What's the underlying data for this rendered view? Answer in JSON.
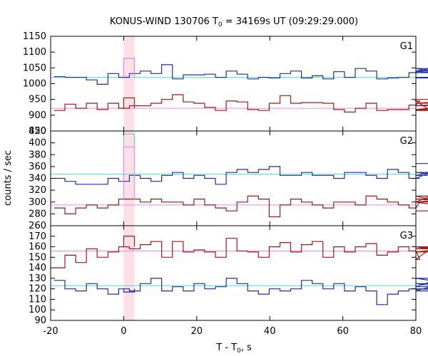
{
  "title": {
    "prefix": "KONUS-WIND 130706 T",
    "sub": "0",
    "suffix": " = 34169s UT (09:29:29.000)"
  },
  "xlabel": {
    "prefix": "T - T",
    "sub": "0",
    "suffix": ", s"
  },
  "ylabel": "counts / sec",
  "chart_data": {
    "type": "line",
    "xlim": [
      -20,
      80
    ],
    "xticks": [
      -20,
      0,
      20,
      40,
      60,
      80
    ],
    "highlight_interval": [
      0,
      2.944
    ],
    "highlight_color": "#fde0e6",
    "bin_step": 2.944,
    "bin_start": -19.04,
    "panels": [
      {
        "name": "G1",
        "ylim": [
          850,
          1150
        ],
        "yticks": [
          850,
          900,
          950,
          1000,
          1050,
          1100,
          1150
        ],
        "background": [
          {
            "color": "#5ecfe0",
            "level": 1020
          },
          {
            "color": "#ee8aee",
            "level": 922
          }
        ],
        "series": [
          {
            "color": "#1c2ea8",
            "values": [
              1022,
              1020,
              1020,
              1012,
              998,
              1032,
              1020,
              1032,
              1040,
              1032,
              1060,
              1015,
              1028,
              1028,
              1030,
              1020,
              1040,
              1030,
              1015,
              1020,
              1018,
              1032,
              1040,
              1018,
              1025,
              1015,
              1038,
              1020,
              1048,
              1040,
              1015,
              1018,
              1020,
              1035,
              1040,
              1048,
              1035,
              1040,
              1020,
              1018
            ],
            "highlight": {
              "color": "#e080e0",
              "value": 1080
            }
          },
          {
            "color": "#a01818",
            "values": [
              915,
              935,
              922,
              938,
              918,
              938,
              922,
              930,
              930,
              938,
              950,
              965,
              942,
              938,
              925,
              915,
              945,
              942,
              918,
              915,
              938,
              962,
              938,
              940,
              940,
              938,
              918,
              910,
              922,
              938,
              915,
              918,
              918,
              932,
              945,
              915,
              918,
              930,
              938,
              950
            ],
            "highlight": {
              "color": "#a01818",
              "value": 955
            }
          }
        ]
      },
      {
        "name": "G2",
        "ylim": [
          260,
          420
        ],
        "yticks": [
          260,
          280,
          300,
          320,
          340,
          360,
          380,
          400,
          420
        ],
        "background": [
          {
            "color": "#5ecfe0",
            "level": 347
          },
          {
            "color": "#ee8aee",
            "level": 295
          }
        ],
        "series": [
          {
            "color": "#1c2ea8",
            "values": [
              340,
              335,
              330,
              330,
              330,
              340,
              335,
              345,
              340,
              335,
              345,
              350,
              340,
              345,
              340,
              330,
              350,
              355,
              350,
              355,
              360,
              345,
              345,
              350,
              345,
              345,
              340,
              350,
              350,
              345,
              340,
              355,
              350,
              340,
              340,
              350,
              345,
              345,
              345,
              365
            ],
            "highlight": {
              "color": "#5ecfe0",
              "value": 415
            }
          },
          {
            "color": "#a01818",
            "values": [
              290,
              280,
              290,
              295,
              290,
              295,
              305,
              305,
              300,
              305,
              300,
              300,
              295,
              305,
              295,
              290,
              285,
              300,
              310,
              305,
              275,
              295,
              305,
              300,
              295,
              290,
              300,
              300,
              295,
              310,
              305,
              300,
              295,
              290,
              300,
              310,
              300,
              305,
              300,
              285
            ],
            "highlight": {
              "color": "#ee8aee",
              "value": 393
            }
          }
        ]
      },
      {
        "name": "G3",
        "ylim": [
          90,
          180
        ],
        "yticks": [
          90,
          100,
          110,
          120,
          130,
          140,
          150,
          160,
          170
        ],
        "background": [
          {
            "color": "#ee8aee",
            "level": 156
          },
          {
            "color": "#5ecfe0",
            "level": 123
          }
        ],
        "series": [
          {
            "color": "#a01818",
            "values": [
              140,
              152,
              145,
              158,
              150,
              155,
              160,
              158,
              162,
              165,
              150,
              165,
              155,
              157,
              155,
              150,
              168,
              156,
              155,
              150,
              160,
              164,
              155,
              162,
              165,
              150,
              160,
              155,
              160,
              163,
              152,
              155,
              160,
              156,
              148,
              158,
              160,
              155,
              160,
              158
            ],
            "highlight": {
              "color": "#a01818",
              "value": 170
            }
          },
          {
            "color": "#1c2ea8",
            "values": [
              128,
              120,
              118,
              125,
              120,
              115,
              120,
              118,
              125,
              130,
              118,
              122,
              118,
              125,
              120,
              122,
              130,
              125,
              118,
              115,
              120,
              118,
              120,
              128,
              125,
              120,
              125,
              118,
              122,
              118,
              105,
              115,
              118,
              120,
              118,
              122,
              130,
              125,
              120,
              118
            ],
            "highlight": {
              "color": "#1c2ea8",
              "value": 117
            }
          }
        ]
      }
    ]
  }
}
